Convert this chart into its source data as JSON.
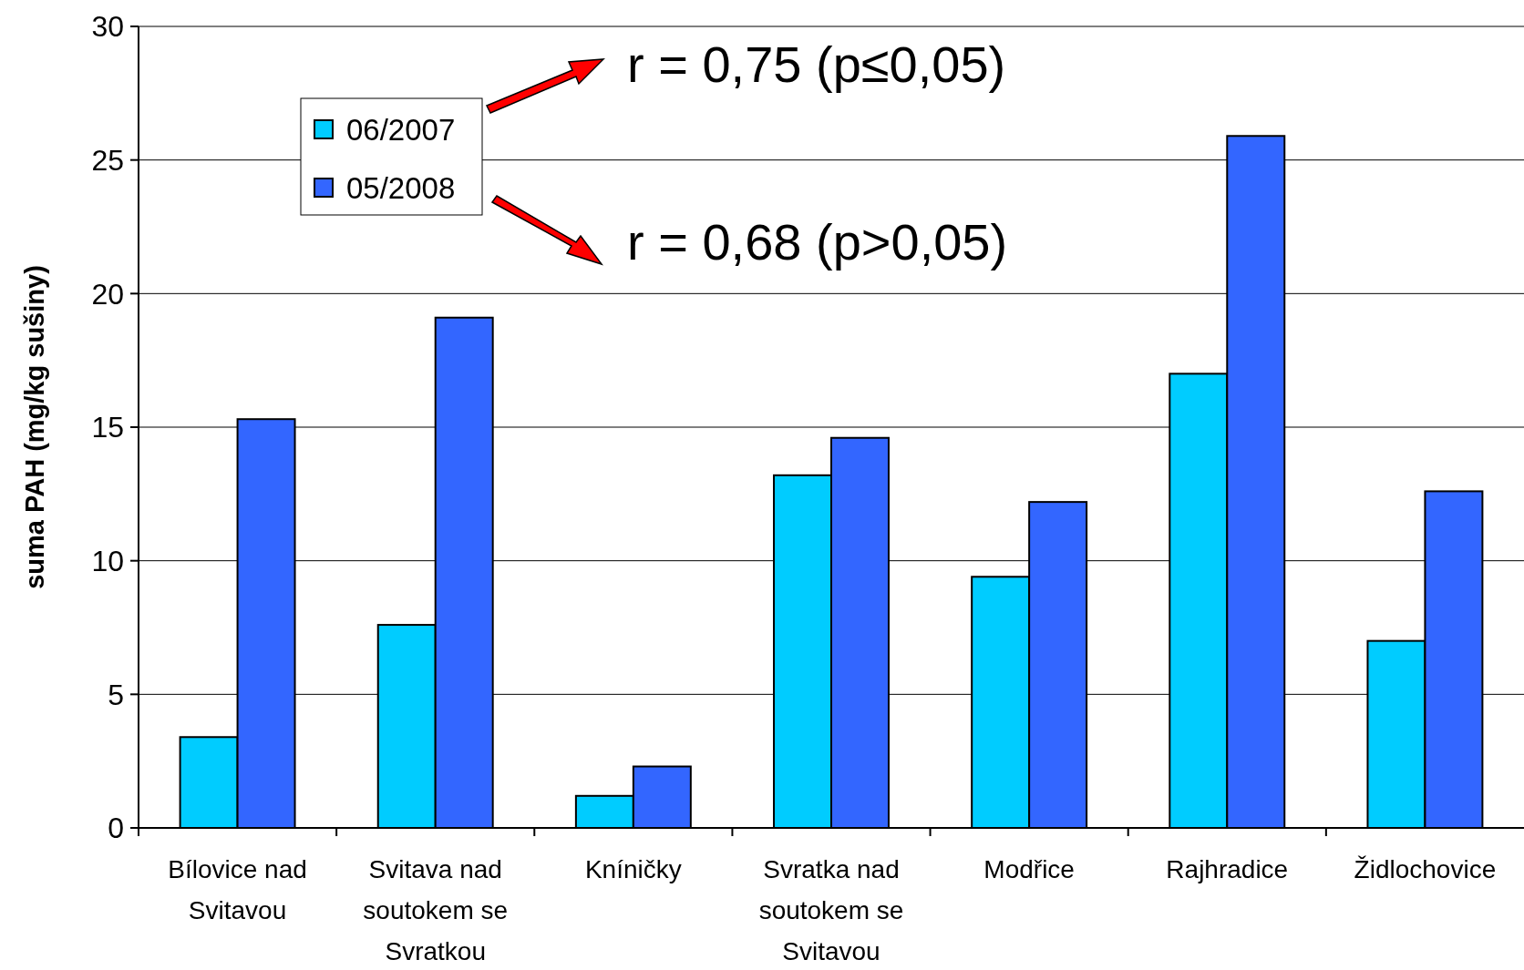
{
  "chart_data": {
    "type": "bar",
    "ylabel": "suma PAH (mg/kg sušiny)",
    "categories": [
      "Bílovice nad Svitavou",
      "Svitava nad soutokem se Svratkou",
      "Kníničky",
      "Svratka nad soutokem se Svitavou",
      "Modřice",
      "Rajhradice",
      "Židlochovice"
    ],
    "series": [
      {
        "name": "06/2007",
        "color": "#00ccff",
        "values": [
          3.4,
          7.6,
          1.2,
          13.2,
          9.4,
          17.0,
          7.0
        ]
      },
      {
        "name": "05/2008",
        "color": "#3366ff",
        "values": [
          15.3,
          19.1,
          2.3,
          14.6,
          12.2,
          25.9,
          12.6
        ]
      }
    ],
    "ylim": [
      0,
      30
    ],
    "yticks": [
      0,
      5,
      10,
      15,
      20,
      25,
      30
    ],
    "grid": "y",
    "legend": "top left",
    "annotations": [
      "r = 0,75 (p≤0,05)",
      "r = 0,68 (p>0,05)"
    ]
  }
}
